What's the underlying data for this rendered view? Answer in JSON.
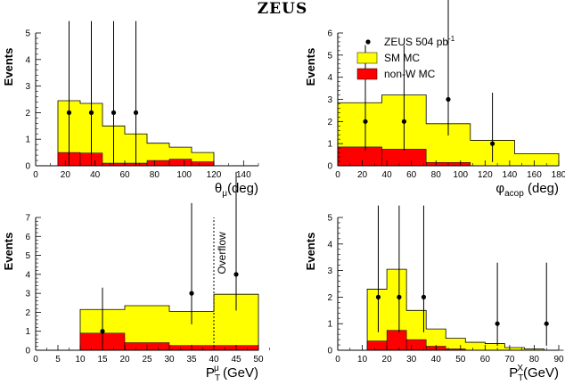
{
  "page_title": "ZEUS",
  "colors": {
    "sm_mc": "#ffff00",
    "non_w_mc": "#ff0000",
    "data": "#000000"
  },
  "chart_data": [
    {
      "type": "bar",
      "panel": "top-left",
      "ylabel": "Events",
      "xlabel": "θμ(deg)",
      "xlabel_parts": [
        "θ",
        "μ",
        "(deg)"
      ],
      "xlim": [
        0,
        150
      ],
      "ylim": [
        0,
        5
      ],
      "xticks": [
        0,
        20,
        40,
        60,
        80,
        100,
        120,
        140
      ],
      "yticks": [
        0,
        1,
        2,
        3,
        4,
        5
      ],
      "bin_edges": [
        15,
        30,
        45,
        60,
        75,
        90,
        105,
        120
      ],
      "sm_mc": [
        2.45,
        2.35,
        1.5,
        1.2,
        0.85,
        0.7,
        0.5
      ],
      "non_w_mc": [
        0.5,
        0.48,
        0.1,
        0.1,
        0.2,
        0.25,
        0.15
      ],
      "data": [
        {
          "x": 22.5,
          "y": 2,
          "err_lo": 2,
          "err_hi": 3.45
        },
        {
          "x": 37.5,
          "y": 2,
          "err_lo": 2,
          "err_hi": 3.45
        },
        {
          "x": 52.5,
          "y": 2,
          "err_lo": 2,
          "err_hi": 3.45
        },
        {
          "x": 67.5,
          "y": 2,
          "err_lo": 2,
          "err_hi": 3.45
        }
      ]
    },
    {
      "type": "bar",
      "panel": "top-right",
      "ylabel": "Events",
      "xlabel": "φacop (deg)",
      "xlabel_parts": [
        "φ",
        "acop",
        " (deg)"
      ],
      "xlim": [
        0,
        180
      ],
      "ylim": [
        0,
        6
      ],
      "xticks": [
        0,
        20,
        40,
        60,
        80,
        100,
        120,
        140,
        160,
        180
      ],
      "yticks": [
        0,
        1,
        2,
        3,
        4,
        5,
        6
      ],
      "bin_edges": [
        0,
        36,
        72,
        108,
        144,
        180
      ],
      "sm_mc": [
        2.85,
        3.2,
        1.9,
        1.15,
        0.55
      ],
      "non_w_mc": [
        0.85,
        0.75,
        0.15,
        0,
        0
      ],
      "data": [
        {
          "x": 22.5,
          "y": 2,
          "err_lo": 1.32,
          "err_hi": 3.45
        },
        {
          "x": 54,
          "y": 2,
          "err_lo": 1.32,
          "err_hi": 3.45
        },
        {
          "x": 90,
          "y": 3,
          "err_lo": 1.63,
          "err_hi": 4.76
        },
        {
          "x": 126,
          "y": 1,
          "err_lo": 0.83,
          "err_hi": 2.3
        }
      ],
      "legend": [
        {
          "kind": "marker",
          "label": "ZEUS 504 pb",
          "sup": "-1"
        },
        {
          "kind": "box",
          "series": "sm_mc",
          "label": "SM MC"
        },
        {
          "kind": "box",
          "series": "non_w_mc",
          "label": "non-W MC"
        }
      ]
    },
    {
      "type": "bar",
      "panel": "bottom-left",
      "ylabel": "Events",
      "xlabel": "PTμ (GeV)",
      "xlabel_parts": [
        "P",
        "T",
        "μ",
        " (GeV)"
      ],
      "xlim": [
        0,
        50
      ],
      "ylim": [
        0,
        7
      ],
      "xticks": [
        0,
        5,
        10,
        15,
        20,
        25,
        30,
        35,
        40,
        45,
        50
      ],
      "yticks": [
        0,
        1,
        2,
        3,
        4,
        5,
        6,
        7
      ],
      "bin_edges": [
        10,
        20,
        30,
        40,
        50
      ],
      "sm_mc": [
        2.15,
        2.35,
        2.05,
        2.95
      ],
      "non_w_mc": [
        0.9,
        0.4,
        0.25,
        0.25
      ],
      "data": [
        {
          "x": 15,
          "y": 1,
          "err_lo": 0.83,
          "err_hi": 2.3
        },
        {
          "x": 35,
          "y": 3,
          "err_lo": 1.63,
          "err_hi": 4.76
        },
        {
          "x": 45,
          "y": 4,
          "err_lo": 1.91,
          "err_hi": 5.4
        }
      ],
      "overflow_x": 40,
      "overflow_label": "Overflow"
    },
    {
      "type": "bar",
      "panel": "bottom-right",
      "ylabel": "Events",
      "xlabel": "PTX(GeV)",
      "xlabel_parts": [
        "P",
        "T",
        "X",
        "(GeV)"
      ],
      "xlim": [
        0,
        90
      ],
      "ylim": [
        0,
        5
      ],
      "xticks": [
        0,
        10,
        20,
        30,
        40,
        50,
        60,
        70,
        80,
        90
      ],
      "yticks": [
        0,
        1,
        2,
        3,
        4,
        5
      ],
      "bin_edges": [
        12,
        20,
        28,
        36,
        44,
        52,
        60,
        68,
        76,
        84,
        92
      ],
      "sm_mc": [
        2.3,
        3.05,
        1.5,
        0.8,
        0.45,
        0.3,
        0.25,
        0.1,
        0.05,
        0
      ],
      "non_w_mc": [
        0.35,
        0.75,
        0.4,
        0.15,
        0.05,
        0,
        0,
        0,
        0,
        0
      ],
      "data": [
        {
          "x": 16.5,
          "y": 2,
          "err_lo": 1.32,
          "err_hi": 3.45
        },
        {
          "x": 25,
          "y": 2,
          "err_lo": 1.32,
          "err_hi": 3.45
        },
        {
          "x": 35,
          "y": 2,
          "err_lo": 1.32,
          "err_hi": 3.45
        },
        {
          "x": 65,
          "y": 1,
          "err_lo": 0.83,
          "err_hi": 2.3
        },
        {
          "x": 85,
          "y": 1,
          "err_lo": 0.83,
          "err_hi": 2.3
        }
      ]
    }
  ]
}
